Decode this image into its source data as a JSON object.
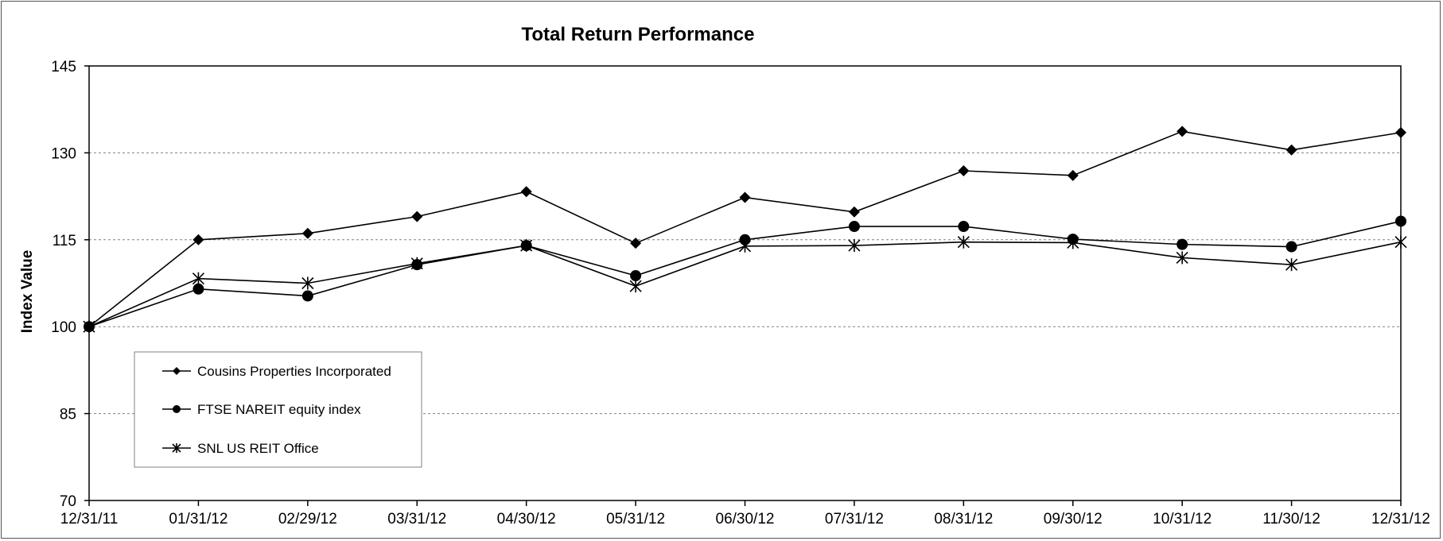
{
  "chart_data": {
    "type": "line",
    "title": "Total Return Performance",
    "xlabel": "",
    "ylabel": "Index Value",
    "ylim": [
      70,
      145
    ],
    "yticks": [
      70,
      85,
      100,
      115,
      130,
      145
    ],
    "grid": "horizontal dashed",
    "legend_position": "bottom-left, inside plot",
    "categories": [
      "12/31/11",
      "01/31/12",
      "02/29/12",
      "03/31/12",
      "04/30/12",
      "05/31/12",
      "06/30/12",
      "07/31/12",
      "08/31/12",
      "09/30/12",
      "10/31/12",
      "11/30/12",
      "12/31/12"
    ],
    "series": [
      {
        "name": "Cousins Properties Incorporated",
        "marker": "diamond",
        "values": [
          100,
          115.0,
          116.1,
          119.0,
          123.3,
          114.4,
          122.3,
          119.8,
          126.9,
          126.1,
          133.7,
          130.5,
          133.5
        ]
      },
      {
        "name": "FTSE NAREIT equity index",
        "marker": "circle",
        "values": [
          100,
          106.5,
          105.3,
          110.7,
          114.0,
          108.8,
          115.0,
          117.3,
          117.3,
          115.1,
          114.2,
          113.8,
          118.2
        ]
      },
      {
        "name": "SNL US REIT Office",
        "marker": "asterisk",
        "values": [
          100,
          108.3,
          107.5,
          110.9,
          114.0,
          107.0,
          113.9,
          114.0,
          114.6,
          114.5,
          111.9,
          110.7,
          114.6
        ]
      }
    ],
    "colors": {
      "lines": "#000000",
      "grid": "#808080",
      "legend_border": "#808080"
    }
  }
}
